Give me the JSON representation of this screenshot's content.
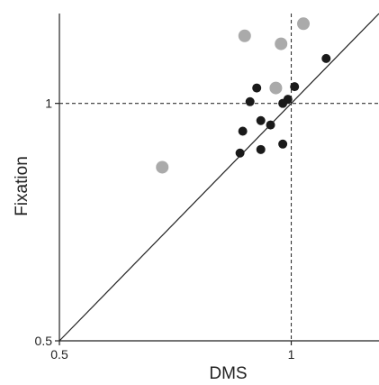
{
  "chart_data": {
    "type": "scatter",
    "title": "",
    "xlabel": "DMS",
    "ylabel": "Fixation",
    "xscale": "log",
    "yscale": "log",
    "xlim": [
      0.5,
      1.3
    ],
    "ylim": [
      0.5,
      1.3
    ],
    "x_ticks": [
      0.5,
      1
    ],
    "x_tick_labels": [
      "0.5",
      "1"
    ],
    "y_ticks": [
      0.5,
      1
    ],
    "y_tick_labels": [
      "0.5",
      "1"
    ],
    "reference_lines": {
      "diagonal": "y = x",
      "vertical_dashed_at_x": 1,
      "horizontal_dashed_at_y": 1
    },
    "grid": false,
    "series": [
      {
        "color": "#1a1a1a",
        "points": [
          {
            "x": 1.11,
            "y": 1.14
          },
          {
            "x": 1.01,
            "y": 1.05
          },
          {
            "x": 0.902,
            "y": 1.046
          },
          {
            "x": 0.884,
            "y": 1.005
          },
          {
            "x": 0.99,
            "y": 1.012
          },
          {
            "x": 0.975,
            "y": 1.0
          },
          {
            "x": 0.913,
            "y": 0.951
          },
          {
            "x": 0.94,
            "y": 0.939
          },
          {
            "x": 0.865,
            "y": 0.922
          },
          {
            "x": 0.975,
            "y": 0.888
          },
          {
            "x": 0.913,
            "y": 0.874
          },
          {
            "x": 0.858,
            "y": 0.865
          }
        ]
      },
      {
        "color": "#aaaaaa",
        "points": [
          {
            "x": 1.037,
            "y": 1.262
          },
          {
            "x": 0.87,
            "y": 1.218
          },
          {
            "x": 0.97,
            "y": 1.19
          },
          {
            "x": 0.955,
            "y": 1.046
          },
          {
            "x": 0.68,
            "y": 0.83
          }
        ]
      }
    ]
  }
}
